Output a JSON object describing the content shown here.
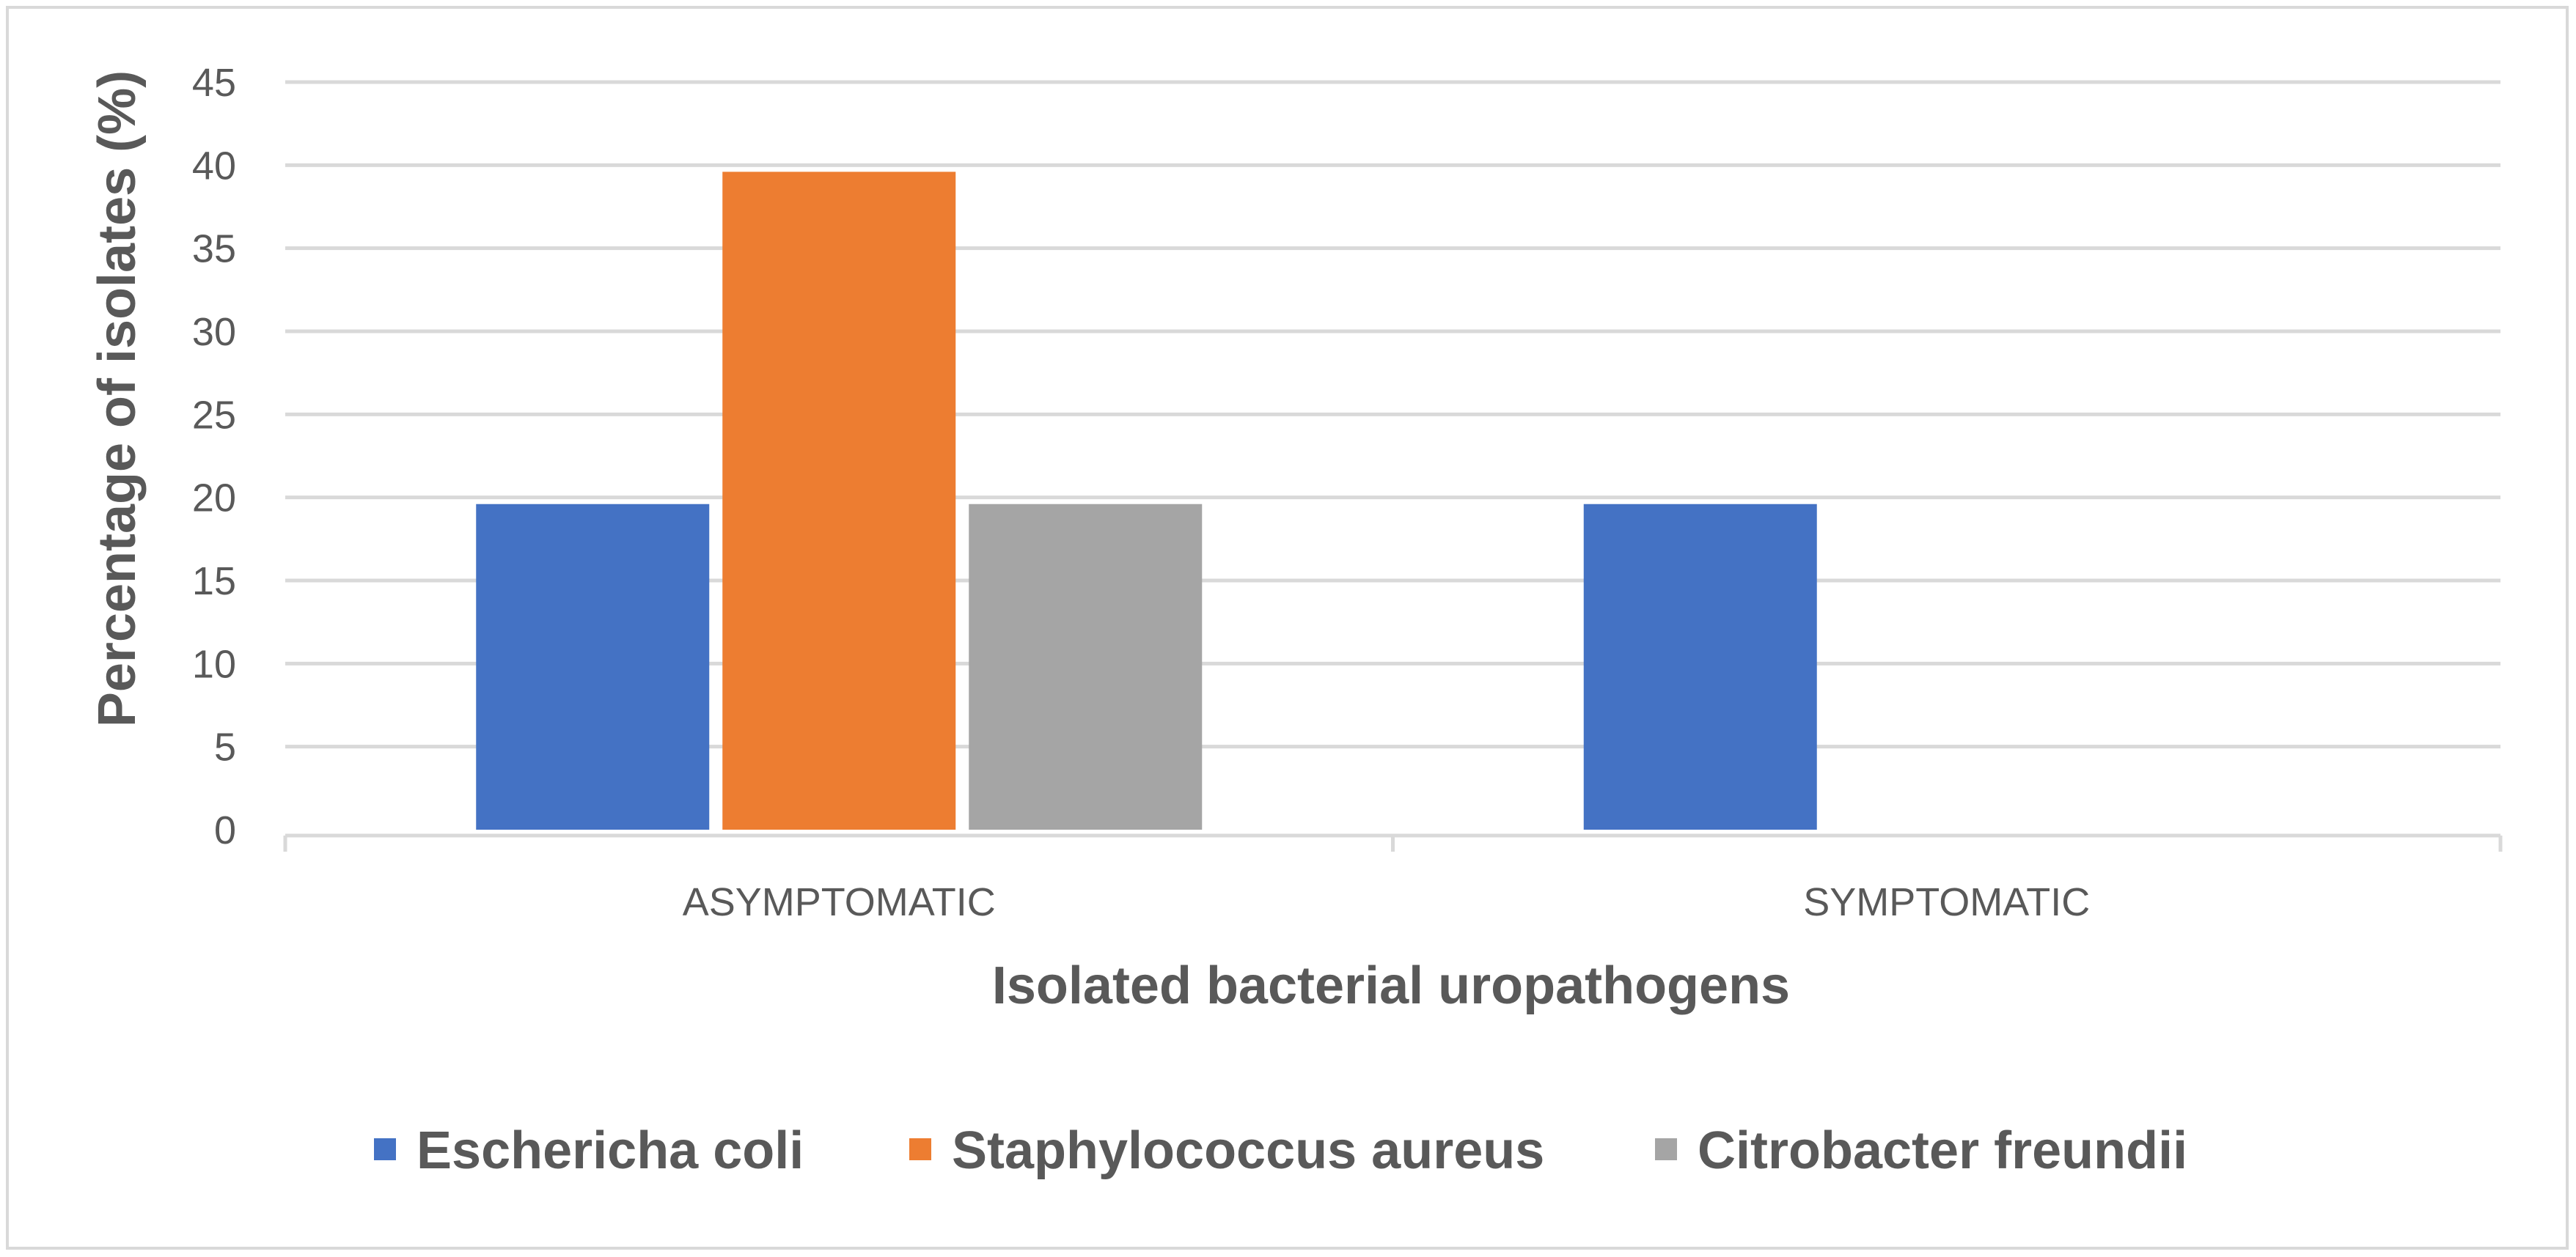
{
  "chart_data": {
    "type": "bar",
    "categories": [
      "ASYMPTOMATIC",
      "SYMPTOMATIC"
    ],
    "series": [
      {
        "name": "Eschericha coli",
        "values": [
          19.6,
          19.6
        ],
        "color": "#4472c4"
      },
      {
        "name": "Staphylococcus aureus",
        "values": [
          39.6,
          0
        ],
        "color": "#ed7d31"
      },
      {
        "name": "Citrobacter freundii",
        "values": [
          19.6,
          0
        ],
        "color": "#a5a5a5"
      }
    ],
    "xlabel": "Isolated bacterial uropathogens",
    "ylabel": "Percentage of isolates (%)",
    "ylim": [
      0,
      45
    ],
    "yticks": [
      "0",
      "5",
      "10",
      "15",
      "20",
      "25",
      "30",
      "35",
      "40",
      "45"
    ],
    "grid": true,
    "legend": "bottom"
  }
}
